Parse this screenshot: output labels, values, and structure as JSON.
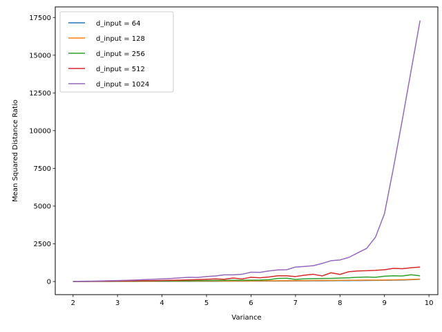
{
  "chart_data": {
    "type": "line",
    "title": "",
    "xlabel": "Variance",
    "ylabel": "Mean Squared Distance Ratio",
    "xlim": [
      1.6,
      10.2
    ],
    "ylim": [
      -870,
      18200
    ],
    "xticks": [
      2,
      3,
      4,
      5,
      6,
      7,
      8,
      9,
      10
    ],
    "yticks": [
      0,
      2500,
      5000,
      7500,
      10000,
      12500,
      15000,
      17500
    ],
    "grid": false,
    "legend_position": "top-left",
    "x": [
      2.0,
      2.2,
      2.4,
      2.6,
      2.8,
      3.0,
      3.2,
      3.4,
      3.6,
      3.8,
      4.0,
      4.2,
      4.4,
      4.6,
      4.8,
      5.0,
      5.2,
      5.4,
      5.6,
      5.8,
      6.0,
      6.2,
      6.4,
      6.6,
      6.8,
      7.0,
      7.2,
      7.4,
      7.6,
      7.8,
      8.0,
      8.2,
      8.4,
      8.6,
      8.8,
      9.0,
      9.2,
      9.4,
      9.6,
      9.8
    ],
    "series": [
      {
        "name": "d_input = 64",
        "color": "#1f77b4",
        "values": [
          2,
          3,
          4,
          5,
          6,
          7,
          8,
          9,
          10,
          11,
          12,
          13,
          14,
          15,
          16,
          18,
          20,
          22,
          24,
          26,
          28,
          30,
          32,
          34,
          37,
          40,
          43,
          46,
          49,
          52,
          56,
          60,
          65,
          70,
          75,
          80,
          90,
          100,
          120,
          150
        ]
      },
      {
        "name": "d_input = 128",
        "color": "#ff7f0e",
        "values": [
          2,
          4,
          5,
          7,
          9,
          11,
          13,
          15,
          17,
          19,
          21,
          23,
          25,
          27,
          29,
          31,
          33,
          35,
          37,
          40,
          42,
          45,
          48,
          51,
          54,
          57,
          60,
          64,
          68,
          72,
          76,
          80,
          85,
          90,
          95,
          100,
          110,
          120,
          140,
          160
        ]
      },
      {
        "name": "d_input = 256",
        "color": "#2ca02c",
        "values": [
          3,
          6,
          9,
          12,
          15,
          18,
          22,
          26,
          30,
          34,
          38,
          42,
          47,
          52,
          57,
          62,
          68,
          74,
          80,
          86,
          93,
          100,
          120,
          200,
          220,
          140,
          180,
          190,
          200,
          210,
          230,
          250,
          280,
          300,
          280,
          350,
          380,
          370,
          450,
          380
        ]
      },
      {
        "name": "d_input = 512",
        "color": "#d62728",
        "values": [
          4,
          8,
          12,
          18,
          24,
          30,
          36,
          44,
          52,
          60,
          70,
          80,
          95,
          110,
          125,
          150,
          175,
          150,
          230,
          170,
          280,
          250,
          300,
          380,
          380,
          330,
          420,
          480,
          370,
          580,
          470,
          650,
          700,
          720,
          740,
          780,
          870,
          850,
          910,
          960
        ]
      },
      {
        "name": "d_input = 1024",
        "color": "#9467bd",
        "values": [
          8,
          16,
          26,
          38,
          50,
          65,
          80,
          100,
          125,
          150,
          175,
          200,
          240,
          280,
          270,
          330,
          370,
          440,
          440,
          480,
          620,
          610,
          700,
          770,
          780,
          960,
          1000,
          1050,
          1200,
          1380,
          1430,
          1600,
          1900,
          2200,
          2950,
          4500,
          7500,
          10700,
          14000,
          17300
        ]
      }
    ]
  }
}
